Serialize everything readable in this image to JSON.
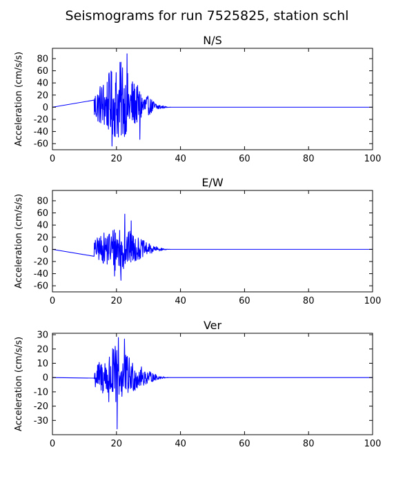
{
  "figure": {
    "title": "Seismograms for run 7525825, station schl",
    "line_color": "#0000ff"
  },
  "chart_data": [
    {
      "type": "line",
      "title": "N/S",
      "xlabel": "",
      "ylabel": "Acceleration (cm/s/s)",
      "xlim": [
        0,
        100
      ],
      "ylim": [
        -70,
        97
      ],
      "xticks": [
        0,
        20,
        40,
        60,
        80,
        100
      ],
      "yticks": [
        -60,
        -40,
        -20,
        0,
        20,
        40,
        60,
        80
      ],
      "grid": false,
      "signal": {
        "start": 13,
        "end": 37,
        "dt": 0.1,
        "peak_time": 21,
        "positive_amplitude": 78,
        "negative_amplitude": 58,
        "peaks": [
          {
            "x": 23.3,
            "y": 88
          },
          {
            "x": 18.6,
            "y": -64
          },
          {
            "x": 21.9,
            "y": 65
          },
          {
            "x": 27.3,
            "y": -53
          }
        ]
      }
    },
    {
      "type": "line",
      "title": "E/W",
      "xlabel": "",
      "ylabel": "Acceleration (cm/s/s)",
      "xlim": [
        0,
        100
      ],
      "ylim": [
        -70,
        97
      ],
      "xticks": [
        0,
        20,
        40,
        60,
        80,
        100
      ],
      "yticks": [
        -60,
        -40,
        -20,
        0,
        20,
        40,
        60,
        80
      ],
      "grid": false,
      "signal": {
        "start": 13,
        "end": 37,
        "dt": 0.1,
        "peak_time": 21,
        "positive_amplitude": 45,
        "negative_amplitude": 40,
        "peaks": [
          {
            "x": 22.6,
            "y": 58
          },
          {
            "x": 21.4,
            "y": -51
          },
          {
            "x": 24.6,
            "y": 47
          },
          {
            "x": 19.4,
            "y": -44
          }
        ]
      }
    },
    {
      "type": "line",
      "title": "Ver",
      "xlabel": "",
      "ylabel": "Acceleration (cm/s/s)",
      "xlim": [
        0,
        100
      ],
      "ylim": [
        -40,
        31
      ],
      "xticks": [
        0,
        20,
        40,
        60,
        80,
        100
      ],
      "yticks": [
        -30,
        -20,
        -10,
        0,
        10,
        20,
        30
      ],
      "grid": false,
      "signal": {
        "start": 13,
        "end": 37,
        "dt": 0.1,
        "peak_time": 20,
        "positive_amplitude": 23,
        "negative_amplitude": 20,
        "peaks": [
          {
            "x": 20.6,
            "y": 28
          },
          {
            "x": 20.2,
            "y": -36
          },
          {
            "x": 22.5,
            "y": 27
          },
          {
            "x": 17.6,
            "y": -17
          }
        ]
      }
    }
  ]
}
